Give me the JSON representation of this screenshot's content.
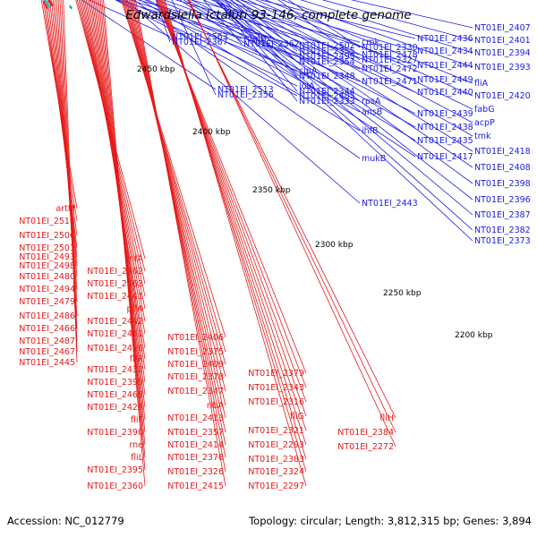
{
  "title": "Edwardsiella ictaluri 93-146, complete genome",
  "footer": {
    "accession": "Accession: NC_012779",
    "summary": "Topology: circular; Length: 3,812,315 bp; Genes: 3,894"
  },
  "colors": {
    "forward": "#1a1ae6",
    "reverse": "#e61919",
    "backbone": "#888888",
    "rna": "#1a8c1a"
  },
  "ticks": [
    "2450 kbp",
    "2400 kbp",
    "2350 kbp",
    "2300 kbp",
    "2250 kbp",
    "2200 kbp"
  ],
  "blue_labels": [
    "NT01EI_2563",
    "rumB",
    "NT01EI_2513",
    "NT01EI_2502",
    "NT01EI_2499",
    "clpA",
    "lolA",
    "NT01EI_2485",
    "cmk",
    "NT01EI_2478",
    "NT01EI_2472",
    "NT01EI_2471",
    "rpsA",
    "ansB",
    "ihfB",
    "mukB",
    "NT01EI_2443",
    "NT01EI_2436",
    "NT01EI_2434",
    "NT01EI_2444",
    "NT01EI_2449",
    "NT01EI_2440",
    "NT01EI_2439",
    "NT01EI_2438",
    "NT01EI_2435",
    "NT01EI_2417",
    "NT01EI_2407",
    "NT01EI_2401",
    "NT01EI_2394",
    "NT01EI_2393",
    "fliA",
    "NT01EI_2420",
    "fabG",
    "acpP",
    "tmk",
    "NT01EI_2418",
    "NT01EI_2408",
    "NT01EI_2398",
    "NT01EI_2396",
    "NT01EI_2387",
    "NT01EI_2382",
    "NT01EI_2373",
    "NT01EI_2367",
    "NT01EI_2362",
    "NT01EI_2356",
    "NT01EI_2355",
    "NT01EI_2354",
    "NT01EI_2348",
    "NT01EI_2344",
    "NT01EI_2333",
    "NT01EI_2330",
    "NT01EI_2327"
  ],
  "red_labels": [
    "artM",
    "NT01EI_2514",
    "NT01EI_2506",
    "NT01EI_2501",
    "NT01EI_2493",
    "NT01EI_2498",
    "NT01EI_2480",
    "NT01EI_2494",
    "NT01EI_2479",
    "NT01EI_2486",
    "NT01EI_2466",
    "NT01EI_2487",
    "NT01EI_2467",
    "NT01EI_2445",
    "infA",
    "NT01EI_2462",
    "NT01EI_2463",
    "NT01EI_2441",
    "pflA",
    "NT01EI_2442",
    "NT01EI_2461",
    "NT01EI_2416",
    "fliR",
    "NT01EI_2432",
    "NT01EI_2399",
    "NT01EI_2468",
    "NT01EI_2429",
    "fliF",
    "NT01EI_2390",
    "rne",
    "fliL",
    "NT01EI_2395",
    "NT01EI_2360",
    "NT01EI_2406",
    "NT01EI_2375",
    "NT01EI_2409",
    "NT01EI_2378",
    "NT01EI_2347",
    "ribA",
    "NT01EI_2413",
    "NT01EI_2357",
    "NT01EI_2414",
    "NT01EI_2376",
    "NT01EI_2326",
    "NT01EI_2415",
    "NT01EI_2379",
    "NT01EI_2343",
    "NT01EI_2316",
    "fliG",
    "NT01EI_2321",
    "NT01EI_2293",
    "NT01EI_2383",
    "NT01EI_2324",
    "NT01EI_2297",
    "fliH",
    "NT01EI_2384",
    "NT01EI_2272"
  ]
}
